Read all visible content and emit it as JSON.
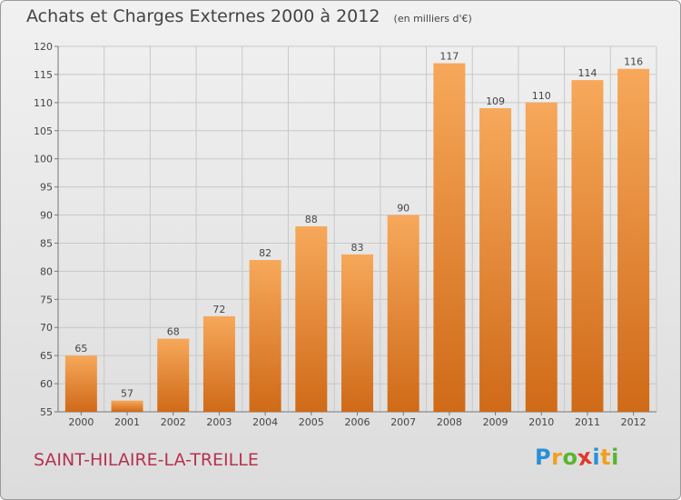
{
  "chart_data": {
    "type": "bar",
    "title": "Achats et Charges Externes 2000 à 2012",
    "subtitle": "(en milliers d'€)",
    "categories": [
      "2000",
      "2001",
      "2002",
      "2003",
      "2004",
      "2005",
      "2006",
      "2007",
      "2008",
      "2009",
      "2010",
      "2011",
      "2012"
    ],
    "values": [
      65,
      57,
      68,
      72,
      82,
      88,
      83,
      90,
      117,
      109,
      110,
      114,
      116
    ],
    "ylim": [
      55,
      120
    ],
    "yticks": [
      55,
      60,
      65,
      70,
      75,
      80,
      85,
      90,
      95,
      100,
      105,
      110,
      115,
      120
    ],
    "grid": true,
    "bar_color": "#e8832f",
    "bar_color_light": "#f7a85a",
    "bar_color_dark": "#cf6a18"
  },
  "commune": "SAINT-HILAIRE-LA-TREILLE",
  "logo": {
    "text": "Proxiti",
    "letters": [
      {
        "ch": "P",
        "color": "#2a8fd6"
      },
      {
        "ch": "r",
        "color": "#f0a01e"
      },
      {
        "ch": "o",
        "color": "#5ab52c"
      },
      {
        "ch": "x",
        "color": "#e2362b"
      },
      {
        "ch": "i",
        "color": "#2a8fd6"
      },
      {
        "ch": "t",
        "color": "#f0a01e"
      },
      {
        "ch": "i",
        "color": "#5ab52c"
      }
    ]
  },
  "colors": {
    "title": "#444444",
    "commune": "#b5324f",
    "grid": "#c8c8c8"
  }
}
